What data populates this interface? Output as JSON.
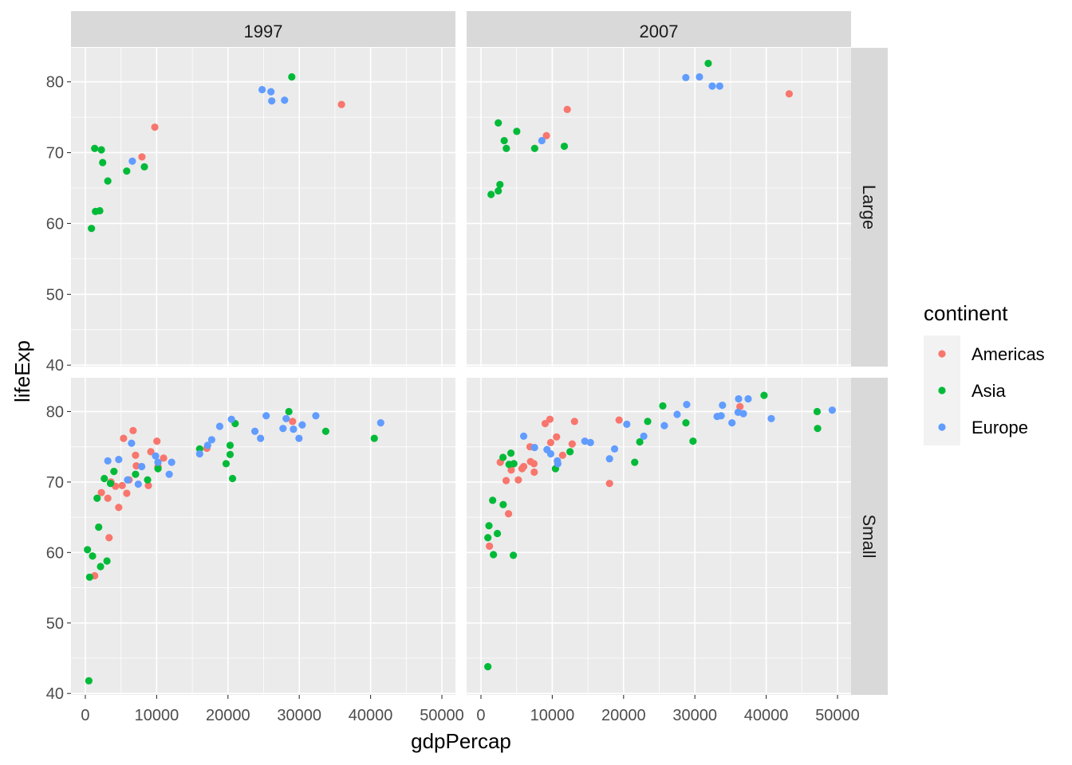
{
  "chart_data": {
    "type": "scatter",
    "xlabel": "gdpPercap",
    "ylabel": "lifeExp",
    "xlim": [
      -2013,
      51900
    ],
    "ylim": [
      39.8,
      84.8
    ],
    "x_ticks": [
      0,
      10000,
      20000,
      30000,
      40000,
      50000
    ],
    "x_tick_labels": [
      "0",
      "10000",
      "20000",
      "30000",
      "40000",
      "50000"
    ],
    "y_ticks": [
      40,
      50,
      60,
      70,
      80
    ],
    "y_tick_labels": [
      "40",
      "50",
      "60",
      "70",
      "80"
    ],
    "grid": true,
    "facet_cols": [
      "1997",
      "2007"
    ],
    "facet_rows": [
      "Large",
      "Small"
    ],
    "legend": {
      "title": "continent",
      "placement": "right",
      "entries": [
        {
          "name": "Americas",
          "color": "#F8766D"
        },
        {
          "name": "Asia",
          "color": "#00BA38"
        },
        {
          "name": "Europe",
          "color": "#619CFF"
        }
      ]
    },
    "panels": [
      {
        "year": "1997",
        "size": "Large",
        "series": {
          "Americas": [
            [
              35920,
              76.8
            ],
            [
              9740,
              73.6
            ],
            [
              7940,
              69.4
            ]
          ],
          "Asia": [
            [
              28950,
              80.7
            ],
            [
              1310,
              70.6
            ],
            [
              2250,
              70.4
            ],
            [
              2430,
              68.6
            ],
            [
              8280,
              68.0
            ],
            [
              5800,
              67.4
            ],
            [
              3150,
              66.0
            ],
            [
              1420,
              61.7
            ],
            [
              2020,
              61.8
            ],
            [
              860,
              59.3
            ]
          ],
          "Europe": [
            [
              24790,
              78.9
            ],
            [
              26030,
              78.6
            ],
            [
              26140,
              77.3
            ],
            [
              27940,
              77.4
            ],
            [
              6590,
              68.8
            ]
          ]
        }
      },
      {
        "year": "2007",
        "size": "Large",
        "series": {
          "Americas": [
            [
              43220,
              78.3
            ],
            [
              12100,
              76.1
            ],
            [
              9180,
              72.4
            ]
          ],
          "Asia": [
            [
              31870,
              82.6
            ],
            [
              2430,
              74.2
            ],
            [
              5020,
              73.0
            ],
            [
              3260,
              71.7
            ],
            [
              3560,
              70.6
            ],
            [
              7530,
              70.6
            ],
            [
              11690,
              70.9
            ],
            [
              2660,
              65.5
            ],
            [
              2430,
              64.6
            ],
            [
              1420,
              64.1
            ]
          ],
          "Europe": [
            [
              28730,
              80.6
            ],
            [
              30640,
              80.7
            ],
            [
              32430,
              79.4
            ],
            [
              33480,
              79.4
            ],
            [
              8540,
              71.7
            ]
          ]
        }
      },
      {
        "year": "1997",
        "size": "Small",
        "series": {
          "Americas": [
            [
              6700,
              77.3
            ],
            [
              5360,
              76.2
            ],
            [
              10040,
              75.8
            ],
            [
              7040,
              73.8
            ],
            [
              9180,
              74.3
            ],
            [
              10970,
              73.4
            ],
            [
              7150,
              72.3
            ],
            [
              10190,
              72.2
            ],
            [
              3600,
              70.0
            ],
            [
              4230,
              69.4
            ],
            [
              5170,
              69.5
            ],
            [
              6140,
              70.3
            ],
            [
              8840,
              69.5
            ],
            [
              5810,
              68.4
            ],
            [
              2250,
              68.5
            ],
            [
              3150,
              67.7
            ],
            [
              4680,
              66.4
            ],
            [
              3330,
              62.1
            ],
            [
              1310,
              56.7
            ],
            [
              17040,
              74.8
            ],
            [
              29060,
              78.6
            ]
          ],
          "Asia": [
            [
              490,
              41.8
            ],
            [
              300,
              60.4
            ],
            [
              1010,
              59.5
            ],
            [
              2130,
              58.0
            ],
            [
              3030,
              58.8
            ],
            [
              600,
              56.5
            ],
            [
              1870,
              63.6
            ],
            [
              1650,
              67.7
            ],
            [
              2660,
              70.5
            ],
            [
              3520,
              69.8
            ],
            [
              4010,
              71.5
            ],
            [
              7040,
              71.1
            ],
            [
              8730,
              70.3
            ],
            [
              10190,
              71.9
            ],
            [
              16030,
              74.7
            ],
            [
              20300,
              75.2
            ],
            [
              20300,
              73.9
            ],
            [
              19740,
              72.6
            ],
            [
              20640,
              70.5
            ],
            [
              21010,
              78.3
            ],
            [
              28540,
              80.0
            ],
            [
              33710,
              77.2
            ],
            [
              40520,
              76.2
            ]
          ],
          "Europe": [
            [
              3150,
              73.0
            ],
            [
              4680,
              73.2
            ],
            [
              6480,
              75.5
            ],
            [
              7900,
              72.2
            ],
            [
              9850,
              73.7
            ],
            [
              10190,
              72.8
            ],
            [
              12100,
              72.8
            ],
            [
              11760,
              71.1
            ],
            [
              5920,
              70.3
            ],
            [
              7420,
              69.7
            ],
            [
              16030,
              74.0
            ],
            [
              17150,
              75.2
            ],
            [
              17720,
              76.0
            ],
            [
              18840,
              77.9
            ],
            [
              20490,
              78.9
            ],
            [
              23780,
              77.2
            ],
            [
              24570,
              76.2
            ],
            [
              25360,
              79.4
            ],
            [
              27720,
              77.6
            ],
            [
              28160,
              79.0
            ],
            [
              29180,
              77.5
            ],
            [
              30410,
              78.1
            ],
            [
              29960,
              76.2
            ],
            [
              32320,
              79.4
            ],
            [
              41420,
              78.4
            ]
          ]
        }
      },
      {
        "year": "2007",
        "size": "Small",
        "series": {
          "Americas": [
            [
              1190,
              60.9
            ],
            [
              3870,
              65.5
            ],
            [
              3530,
              70.2
            ],
            [
              5240,
              70.3
            ],
            [
              2710,
              72.8
            ],
            [
              4240,
              71.7
            ],
            [
              5760,
              71.9
            ],
            [
              5990,
              72.2
            ],
            [
              6950,
              72.9
            ],
            [
              7430,
              72.6
            ],
            [
              7470,
              71.4
            ],
            [
              6880,
              75.0
            ],
            [
              9000,
              78.3
            ],
            [
              9670,
              78.9
            ],
            [
              13120,
              78.6
            ],
            [
              9780,
              75.6
            ],
            [
              10600,
              76.4
            ],
            [
              12790,
              75.4
            ],
            [
              11450,
              73.8
            ],
            [
              18030,
              69.8
            ],
            [
              19370,
              78.8
            ],
            [
              36320,
              80.7
            ]
          ],
          "Asia": [
            [
              970,
              43.8
            ],
            [
              1750,
              59.7
            ],
            [
              4540,
              59.6
            ],
            [
              970,
              62.1
            ],
            [
              2300,
              62.7
            ],
            [
              1120,
              63.8
            ],
            [
              1640,
              67.4
            ],
            [
              3120,
              66.8
            ],
            [
              3090,
              73.5
            ],
            [
              4200,
              74.1
            ],
            [
              3940,
              72.5
            ],
            [
              4610,
              72.6
            ],
            [
              10450,
              71.9
            ],
            [
              12490,
              74.3
            ],
            [
              21560,
              72.8
            ],
            [
              22270,
              75.7
            ],
            [
              23380,
              78.6
            ],
            [
              25500,
              80.8
            ],
            [
              28740,
              78.4
            ],
            [
              29740,
              75.8
            ],
            [
              39700,
              82.3
            ],
            [
              47140,
              80.0
            ],
            [
              47210,
              77.6
            ]
          ],
          "Europe": [
            [
              5990,
              76.5
            ],
            [
              7510,
              74.9
            ],
            [
              9260,
              74.6
            ],
            [
              9780,
              74.0
            ],
            [
              10710,
              73.0
            ],
            [
              10780,
              72.6
            ],
            [
              14570,
              75.8
            ],
            [
              15350,
              75.6
            ],
            [
              18030,
              73.3
            ],
            [
              18740,
              74.7
            ],
            [
              20450,
              78.2
            ],
            [
              22830,
              76.5
            ],
            [
              25720,
              78.0
            ],
            [
              27510,
              79.6
            ],
            [
              28850,
              81.0
            ],
            [
              33120,
              79.3
            ],
            [
              33680,
              79.4
            ],
            [
              33870,
              80.9
            ],
            [
              35200,
              78.4
            ],
            [
              36130,
              81.8
            ],
            [
              36060,
              79.9
            ],
            [
              36800,
              79.7
            ],
            [
              37470,
              81.8
            ],
            [
              40710,
              79.0
            ],
            [
              49260,
              80.2
            ]
          ]
        }
      }
    ]
  }
}
